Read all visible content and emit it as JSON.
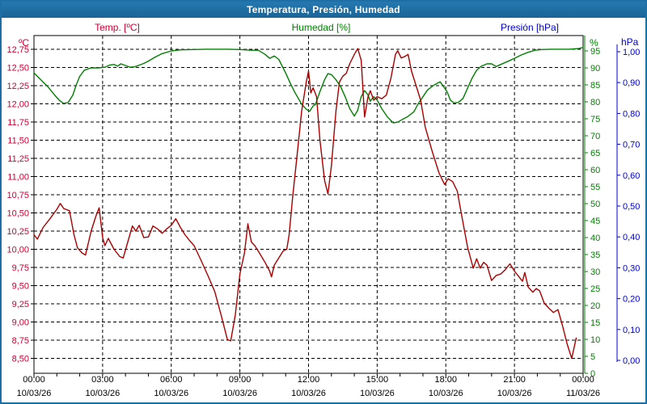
{
  "header": {
    "title": "Temperatura, Presión, Humedad"
  },
  "colors": {
    "titlebar": "#1d6fa5",
    "border": "#1d6fa5",
    "background": "#ffffff",
    "grid": "#000000",
    "axis_frame": "#000000",
    "x_label": "#000000",
    "temp_line": "#aa0000",
    "temp_label": "#cc0033",
    "humidity_line": "#008000",
    "humidity_label": "#008000",
    "pressure_line": "#0000cc",
    "pressure_label": "#0000cc"
  },
  "chart_data": {
    "type": "line",
    "title": "Temperatura, Presión, Humedad",
    "grid": "dashed",
    "legend_position": "top",
    "x": {
      "unit": "hours",
      "range": [
        0,
        24
      ],
      "major_tick_hours": 3,
      "minor_tick_hours": 1,
      "tick_times": [
        "00:00",
        "03:00",
        "06:00",
        "09:00",
        "12:00",
        "15:00",
        "18:00",
        "21:00",
        "00:00"
      ],
      "tick_dates": [
        "10/03/26",
        "10/03/26",
        "10/03/26",
        "10/03/26",
        "10/03/26",
        "10/03/26",
        "10/03/26",
        "10/03/26",
        "11/03/26"
      ]
    },
    "axes": {
      "temperature": {
        "side": "left",
        "unit": "ºC",
        "min": 8.5,
        "max": 12.75,
        "tick_step": 0.25,
        "tick_labels": [
          "12,75",
          "12,50",
          "12,25",
          "12,00",
          "11,75",
          "11,50",
          "11,25",
          "11,00",
          "10,75",
          "10,50",
          "10,25",
          "10,00",
          "9,75",
          "9,50",
          "9,25",
          "9,00",
          "8,75",
          "8,50"
        ],
        "color": "#cc0033"
      },
      "humidity": {
        "side": "right-inner",
        "unit": "%",
        "min": 0,
        "max": 95,
        "tick_step": 5,
        "tick_labels": [
          "95",
          "90",
          "85",
          "80",
          "75",
          "70",
          "65",
          "60",
          "55",
          "50",
          "45",
          "40",
          "35",
          "30",
          "25",
          "20",
          "15",
          "10",
          "5",
          "0"
        ],
        "color": "#008000"
      },
      "pressure": {
        "side": "right-outer",
        "unit": "hPa",
        "min": 0.0,
        "max": 1.0,
        "tick_step": 0.1,
        "tick_labels": [
          "1,00",
          "0,90",
          "0,80",
          "0,70",
          "0,60",
          "0,50",
          "0,40",
          "0,30",
          "0,20",
          "0,10",
          "0,00"
        ],
        "color": "#0000cc"
      }
    },
    "series": [
      {
        "name": "Temp. [ºC]",
        "axis": "temperature",
        "color": "#aa0000",
        "points": [
          [
            0,
            10.2
          ],
          [
            0.15,
            10.14
          ],
          [
            0.4,
            10.3
          ],
          [
            0.7,
            10.42
          ],
          [
            1.0,
            10.55
          ],
          [
            1.15,
            10.63
          ],
          [
            1.3,
            10.56
          ],
          [
            1.55,
            10.53
          ],
          [
            1.75,
            10.2
          ],
          [
            1.9,
            10.02
          ],
          [
            2.1,
            9.95
          ],
          [
            2.25,
            9.92
          ],
          [
            2.5,
            10.25
          ],
          [
            2.7,
            10.45
          ],
          [
            2.85,
            10.57
          ],
          [
            3.0,
            10.16
          ],
          [
            3.1,
            10.05
          ],
          [
            3.25,
            10.15
          ],
          [
            3.5,
            10.0
          ],
          [
            3.75,
            9.9
          ],
          [
            3.9,
            9.88
          ],
          [
            4.1,
            10.1
          ],
          [
            4.3,
            10.32
          ],
          [
            4.45,
            10.25
          ],
          [
            4.6,
            10.33
          ],
          [
            4.8,
            10.16
          ],
          [
            5.0,
            10.17
          ],
          [
            5.2,
            10.32
          ],
          [
            5.4,
            10.28
          ],
          [
            5.6,
            10.22
          ],
          [
            5.8,
            10.28
          ],
          [
            6.0,
            10.33
          ],
          [
            6.2,
            10.42
          ],
          [
            6.4,
            10.3
          ],
          [
            6.6,
            10.2
          ],
          [
            6.8,
            10.12
          ],
          [
            7.0,
            10.05
          ],
          [
            7.3,
            9.85
          ],
          [
            7.6,
            9.64
          ],
          [
            7.9,
            9.42
          ],
          [
            8.2,
            9.07
          ],
          [
            8.45,
            8.76
          ],
          [
            8.6,
            8.74
          ],
          [
            8.8,
            9.1
          ],
          [
            9.0,
            9.66
          ],
          [
            9.2,
            9.95
          ],
          [
            9.35,
            10.35
          ],
          [
            9.5,
            10.1
          ],
          [
            9.65,
            10.05
          ],
          [
            9.85,
            9.95
          ],
          [
            10.1,
            9.82
          ],
          [
            10.3,
            9.7
          ],
          [
            10.38,
            9.62
          ],
          [
            10.5,
            9.78
          ],
          [
            10.7,
            9.88
          ],
          [
            10.9,
            9.98
          ],
          [
            11.05,
            10.0
          ],
          [
            11.15,
            10.2
          ],
          [
            11.3,
            10.7
          ],
          [
            11.5,
            11.3
          ],
          [
            11.7,
            11.9
          ],
          [
            11.9,
            12.3
          ],
          [
            12.0,
            12.45
          ],
          [
            12.1,
            12.15
          ],
          [
            12.2,
            12.22
          ],
          [
            12.35,
            12.1
          ],
          [
            12.5,
            11.5
          ],
          [
            12.7,
            10.95
          ],
          [
            12.85,
            10.76
          ],
          [
            13.0,
            11.15
          ],
          [
            13.2,
            11.9
          ],
          [
            13.35,
            12.3
          ],
          [
            13.5,
            12.38
          ],
          [
            13.65,
            12.42
          ],
          [
            13.8,
            12.55
          ],
          [
            14.0,
            12.68
          ],
          [
            14.15,
            12.76
          ],
          [
            14.3,
            12.6
          ],
          [
            14.45,
            11.82
          ],
          [
            14.6,
            12.1
          ],
          [
            14.7,
            12.18
          ],
          [
            14.85,
            12.05
          ],
          [
            15.0,
            12.1
          ],
          [
            15.2,
            12.07
          ],
          [
            15.4,
            12.12
          ],
          [
            15.6,
            12.35
          ],
          [
            15.8,
            12.68
          ],
          [
            15.9,
            12.73
          ],
          [
            16.05,
            12.63
          ],
          [
            16.2,
            12.65
          ],
          [
            16.35,
            12.68
          ],
          [
            16.5,
            12.45
          ],
          [
            16.7,
            12.25
          ],
          [
            16.9,
            12.05
          ],
          [
            17.1,
            11.68
          ],
          [
            17.4,
            11.35
          ],
          [
            17.7,
            11.05
          ],
          [
            17.95,
            10.89
          ],
          [
            18.1,
            10.97
          ],
          [
            18.3,
            10.93
          ],
          [
            18.5,
            10.8
          ],
          [
            18.7,
            10.45
          ],
          [
            18.95,
            10.03
          ],
          [
            19.2,
            9.74
          ],
          [
            19.35,
            9.87
          ],
          [
            19.5,
            9.74
          ],
          [
            19.65,
            9.82
          ],
          [
            19.8,
            9.78
          ],
          [
            20.0,
            9.57
          ],
          [
            20.2,
            9.64
          ],
          [
            20.4,
            9.66
          ],
          [
            20.6,
            9.72
          ],
          [
            20.8,
            9.8
          ],
          [
            21.0,
            9.7
          ],
          [
            21.2,
            9.62
          ],
          [
            21.35,
            9.56
          ],
          [
            21.45,
            9.68
          ],
          [
            21.6,
            9.48
          ],
          [
            21.8,
            9.41
          ],
          [
            21.95,
            9.46
          ],
          [
            22.1,
            9.43
          ],
          [
            22.3,
            9.26
          ],
          [
            22.5,
            9.19
          ],
          [
            22.7,
            9.13
          ],
          [
            22.9,
            9.17
          ],
          [
            23.1,
            8.95
          ],
          [
            23.3,
            8.7
          ],
          [
            23.5,
            8.5
          ],
          [
            23.7,
            8.78
          ]
        ]
      },
      {
        "name": "Humedad [%]",
        "axis": "humidity",
        "color": "#008000",
        "points": [
          [
            0,
            88.5
          ],
          [
            0.3,
            86.5
          ],
          [
            0.6,
            84.5
          ],
          [
            0.9,
            82
          ],
          [
            1.1,
            80.5
          ],
          [
            1.3,
            79.5
          ],
          [
            1.5,
            79.8
          ],
          [
            1.7,
            82
          ],
          [
            1.85,
            85
          ],
          [
            2.0,
            87.5
          ],
          [
            2.2,
            89.3
          ],
          [
            2.5,
            90
          ],
          [
            2.8,
            90
          ],
          [
            3.1,
            90.2
          ],
          [
            3.3,
            90.8
          ],
          [
            3.5,
            91
          ],
          [
            3.65,
            90.5
          ],
          [
            3.8,
            91.2
          ],
          [
            4.0,
            90.7
          ],
          [
            4.2,
            90.2
          ],
          [
            4.4,
            90.3
          ],
          [
            4.6,
            90.8
          ],
          [
            4.8,
            91.3
          ],
          [
            5.0,
            92
          ],
          [
            5.3,
            93.2
          ],
          [
            5.6,
            94.2
          ],
          [
            6.0,
            95
          ],
          [
            6.4,
            95.3
          ],
          [
            7.0,
            95.4
          ],
          [
            7.5,
            95.5
          ],
          [
            8.0,
            95.5
          ],
          [
            8.5,
            95.5
          ],
          [
            9.0,
            95.4
          ],
          [
            9.5,
            95.2
          ],
          [
            9.8,
            95.2
          ],
          [
            10.1,
            94
          ],
          [
            10.3,
            92.8
          ],
          [
            10.5,
            93.5
          ],
          [
            10.7,
            92.5
          ],
          [
            11.0,
            88.5
          ],
          [
            11.2,
            85.5
          ],
          [
            11.4,
            82.8
          ],
          [
            11.7,
            79.3
          ],
          [
            11.9,
            77.8
          ],
          [
            12.05,
            77.2
          ],
          [
            12.2,
            78.8
          ],
          [
            12.3,
            79.2
          ],
          [
            12.5,
            83
          ],
          [
            12.7,
            86.5
          ],
          [
            12.85,
            88.3
          ],
          [
            13.0,
            88
          ],
          [
            13.2,
            86.5
          ],
          [
            13.4,
            84.5
          ],
          [
            13.6,
            81.5
          ],
          [
            13.8,
            78
          ],
          [
            14.0,
            75.8
          ],
          [
            14.15,
            77.5
          ],
          [
            14.3,
            81.5
          ],
          [
            14.45,
            83.3
          ],
          [
            14.6,
            82
          ],
          [
            14.7,
            80.2
          ],
          [
            14.85,
            81.5
          ],
          [
            15.0,
            80.5
          ],
          [
            15.2,
            78
          ],
          [
            15.45,
            75.5
          ],
          [
            15.7,
            73.8
          ],
          [
            15.9,
            74
          ],
          [
            16.1,
            74.8
          ],
          [
            16.3,
            75.5
          ],
          [
            16.6,
            77
          ],
          [
            16.8,
            79.5
          ],
          [
            17.0,
            81.5
          ],
          [
            17.2,
            83.5
          ],
          [
            17.5,
            85
          ],
          [
            17.75,
            85.9
          ],
          [
            17.9,
            84.5
          ],
          [
            18.05,
            83
          ],
          [
            18.2,
            80.5
          ],
          [
            18.35,
            79.7
          ],
          [
            18.55,
            79.8
          ],
          [
            18.75,
            81
          ],
          [
            18.95,
            84
          ],
          [
            19.15,
            87
          ],
          [
            19.35,
            89.3
          ],
          [
            19.55,
            90.5
          ],
          [
            19.8,
            91.2
          ],
          [
            20.0,
            91.2
          ],
          [
            20.2,
            90.4
          ],
          [
            20.4,
            91
          ],
          [
            20.6,
            91.6
          ],
          [
            20.8,
            92.2
          ],
          [
            21.0,
            92.8
          ],
          [
            21.3,
            93.8
          ],
          [
            21.6,
            94.6
          ],
          [
            21.9,
            95.2
          ],
          [
            22.2,
            95.4
          ],
          [
            22.6,
            95.5
          ],
          [
            23.0,
            95.5
          ],
          [
            23.4,
            95.5
          ],
          [
            23.8,
            95.7
          ],
          [
            24.0,
            96
          ]
        ]
      },
      {
        "name": "Presión [hPa]",
        "axis": "pressure",
        "color": "#0000cc",
        "visible": false,
        "points": []
      }
    ]
  }
}
